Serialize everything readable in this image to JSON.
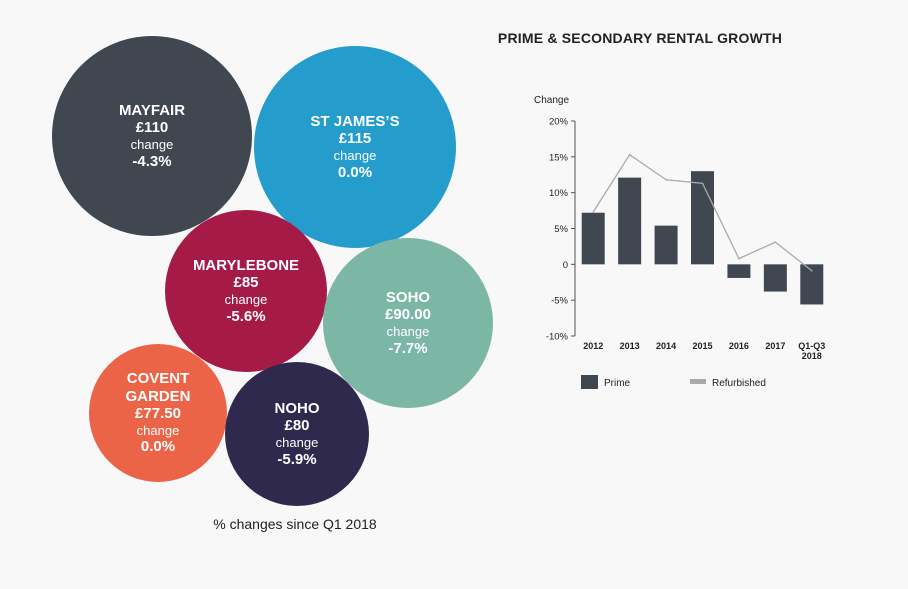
{
  "bubbles": [
    {
      "name": "MAYFAIR",
      "price": "£110",
      "change_label": "change",
      "change": "-4.3%",
      "color": "#414751"
    },
    {
      "name": "ST JAMES’S",
      "price": "£115",
      "change_label": "change",
      "change": "0.0%",
      "color": "#249dcc"
    },
    {
      "name": "MARYLEBONE",
      "price": "£85",
      "change_label": "change",
      "change": "-5.6%",
      "color": "#a61a47"
    },
    {
      "name": "SOHO",
      "price": "£90.00",
      "change_label": "change",
      "change": "-7.7%",
      "color": "#7cb6a5"
    },
    {
      "name": "COVENT GARDEN",
      "price": "£77.50",
      "change_label": "change",
      "change": "0.0%",
      "color": "#ec6448"
    },
    {
      "name": "NOHO",
      "price": "£80",
      "change_label": "change",
      "change": "-5.9%",
      "color": "#2f2a4d"
    }
  ],
  "caption": "% changes since Q1 2018",
  "chart_data": {
    "type": "bar",
    "title": "PRIME & SECONDARY RENTAL GROWTH",
    "ylabel": "Change",
    "ylim": [
      -10,
      20
    ],
    "yticks": [
      20,
      15,
      10,
      5,
      0,
      -5,
      -10
    ],
    "ytick_labels": [
      "20%",
      "15%",
      "10%",
      "5%",
      "0",
      "-5%",
      "-10%"
    ],
    "categories": [
      "2012",
      "2013",
      "2014",
      "2015",
      "2016",
      "2017",
      "Q1-Q3 2018"
    ],
    "series": [
      {
        "name": "Prime",
        "type": "bar",
        "color": "#414751",
        "values": [
          7.2,
          12.1,
          5.4,
          13.0,
          -1.9,
          -3.8,
          -5.6
        ]
      },
      {
        "name": "Refurbished",
        "type": "line",
        "color": "#aaaaaa",
        "values": [
          7.3,
          15.3,
          11.8,
          11.3,
          0.8,
          3.1,
          -0.9
        ]
      }
    ],
    "legend_position": "bottom"
  }
}
